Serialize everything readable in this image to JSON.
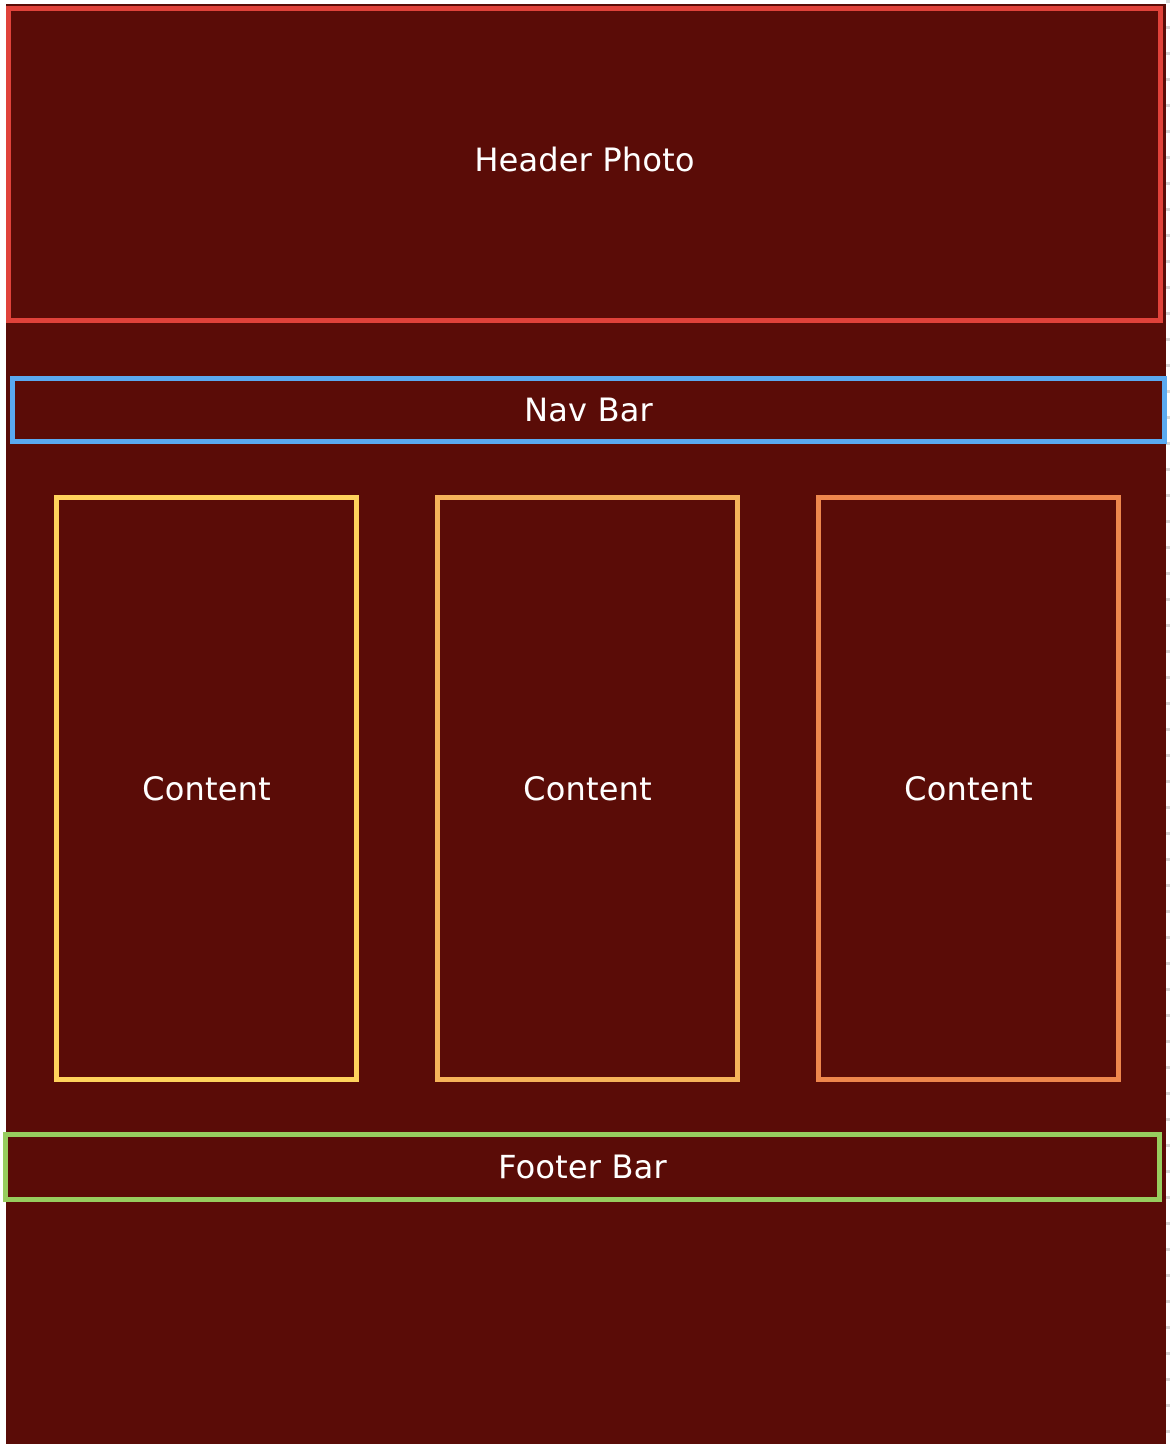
{
  "header": {
    "label": "Header Photo"
  },
  "nav": {
    "label": "Nav Bar"
  },
  "content": [
    {
      "label": "Content"
    },
    {
      "label": "Content"
    },
    {
      "label": "Content"
    }
  ],
  "footer": {
    "label": "Footer Bar"
  },
  "colors": {
    "background": "#5a0c07",
    "header_border": "#e0423a",
    "nav_border": "#5aa9f0",
    "content_1_border": "#ffd35c",
    "content_2_border": "#f7b45a",
    "content_3_border": "#ee874d",
    "footer_border": "#97cd5e",
    "text": "#ffffff"
  }
}
